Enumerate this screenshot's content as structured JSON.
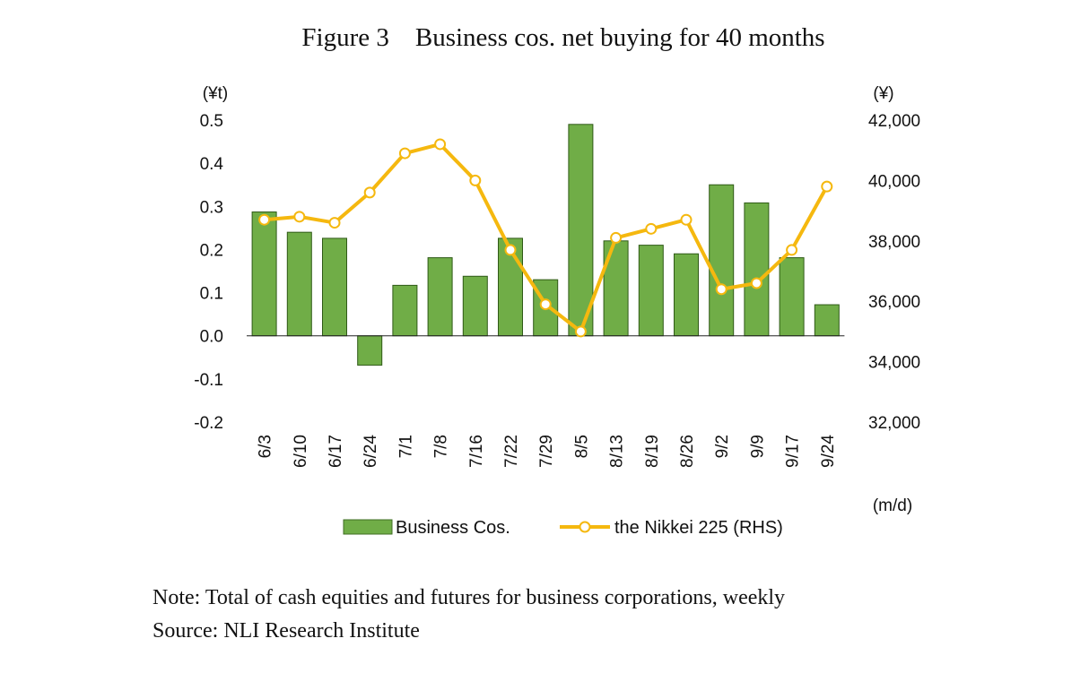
{
  "chart_data": {
    "type": "bar",
    "title": "Figure 3 Business cos. net buying for 40 months",
    "y_left_unit": "(¥t)",
    "y_right_unit": "(¥)",
    "x_unit": "(m/d)",
    "categories": [
      "6/3",
      "6/10",
      "6/17",
      "6/24",
      "7/1",
      "7/8",
      "7/16",
      "7/22",
      "7/29",
      "8/5",
      "8/13",
      "8/19",
      "8/26",
      "9/2",
      "9/9",
      "9/17",
      "9/24"
    ],
    "ylim_left": [
      -0.2,
      0.5
    ],
    "yticks_left": [
      "0.5",
      "0.4",
      "0.3",
      "0.2",
      "0.1",
      "0.0",
      "-0.1",
      "-0.2"
    ],
    "ylim_right": [
      32000,
      42000
    ],
    "yticks_right": [
      "42,000",
      "40,000",
      "38,000",
      "36,000",
      "34,000",
      "32,000"
    ],
    "series": [
      {
        "name": "Business Cos.",
        "type": "bar",
        "axis": "left",
        "color": "#70ad47",
        "values": [
          0.287,
          0.24,
          0.226,
          -0.068,
          0.117,
          0.181,
          0.138,
          0.226,
          0.13,
          0.49,
          0.22,
          0.21,
          0.19,
          0.35,
          0.308,
          0.181,
          0.072
        ]
      },
      {
        "name": "the Nikkei 225 (RHS)",
        "type": "line",
        "axis": "right",
        "color": "#f5b80f",
        "values": [
          38700,
          38800,
          38600,
          39600,
          40900,
          41200,
          40000,
          37700,
          35900,
          35000,
          38100,
          38400,
          38700,
          36400,
          36600,
          37700,
          39800
        ]
      }
    ],
    "legend_position": "bottom",
    "grid": false
  },
  "notes": {
    "note": "Note: Total of cash equities and futures for business corporations, weekly",
    "source": "Source: NLI Research Institute"
  }
}
